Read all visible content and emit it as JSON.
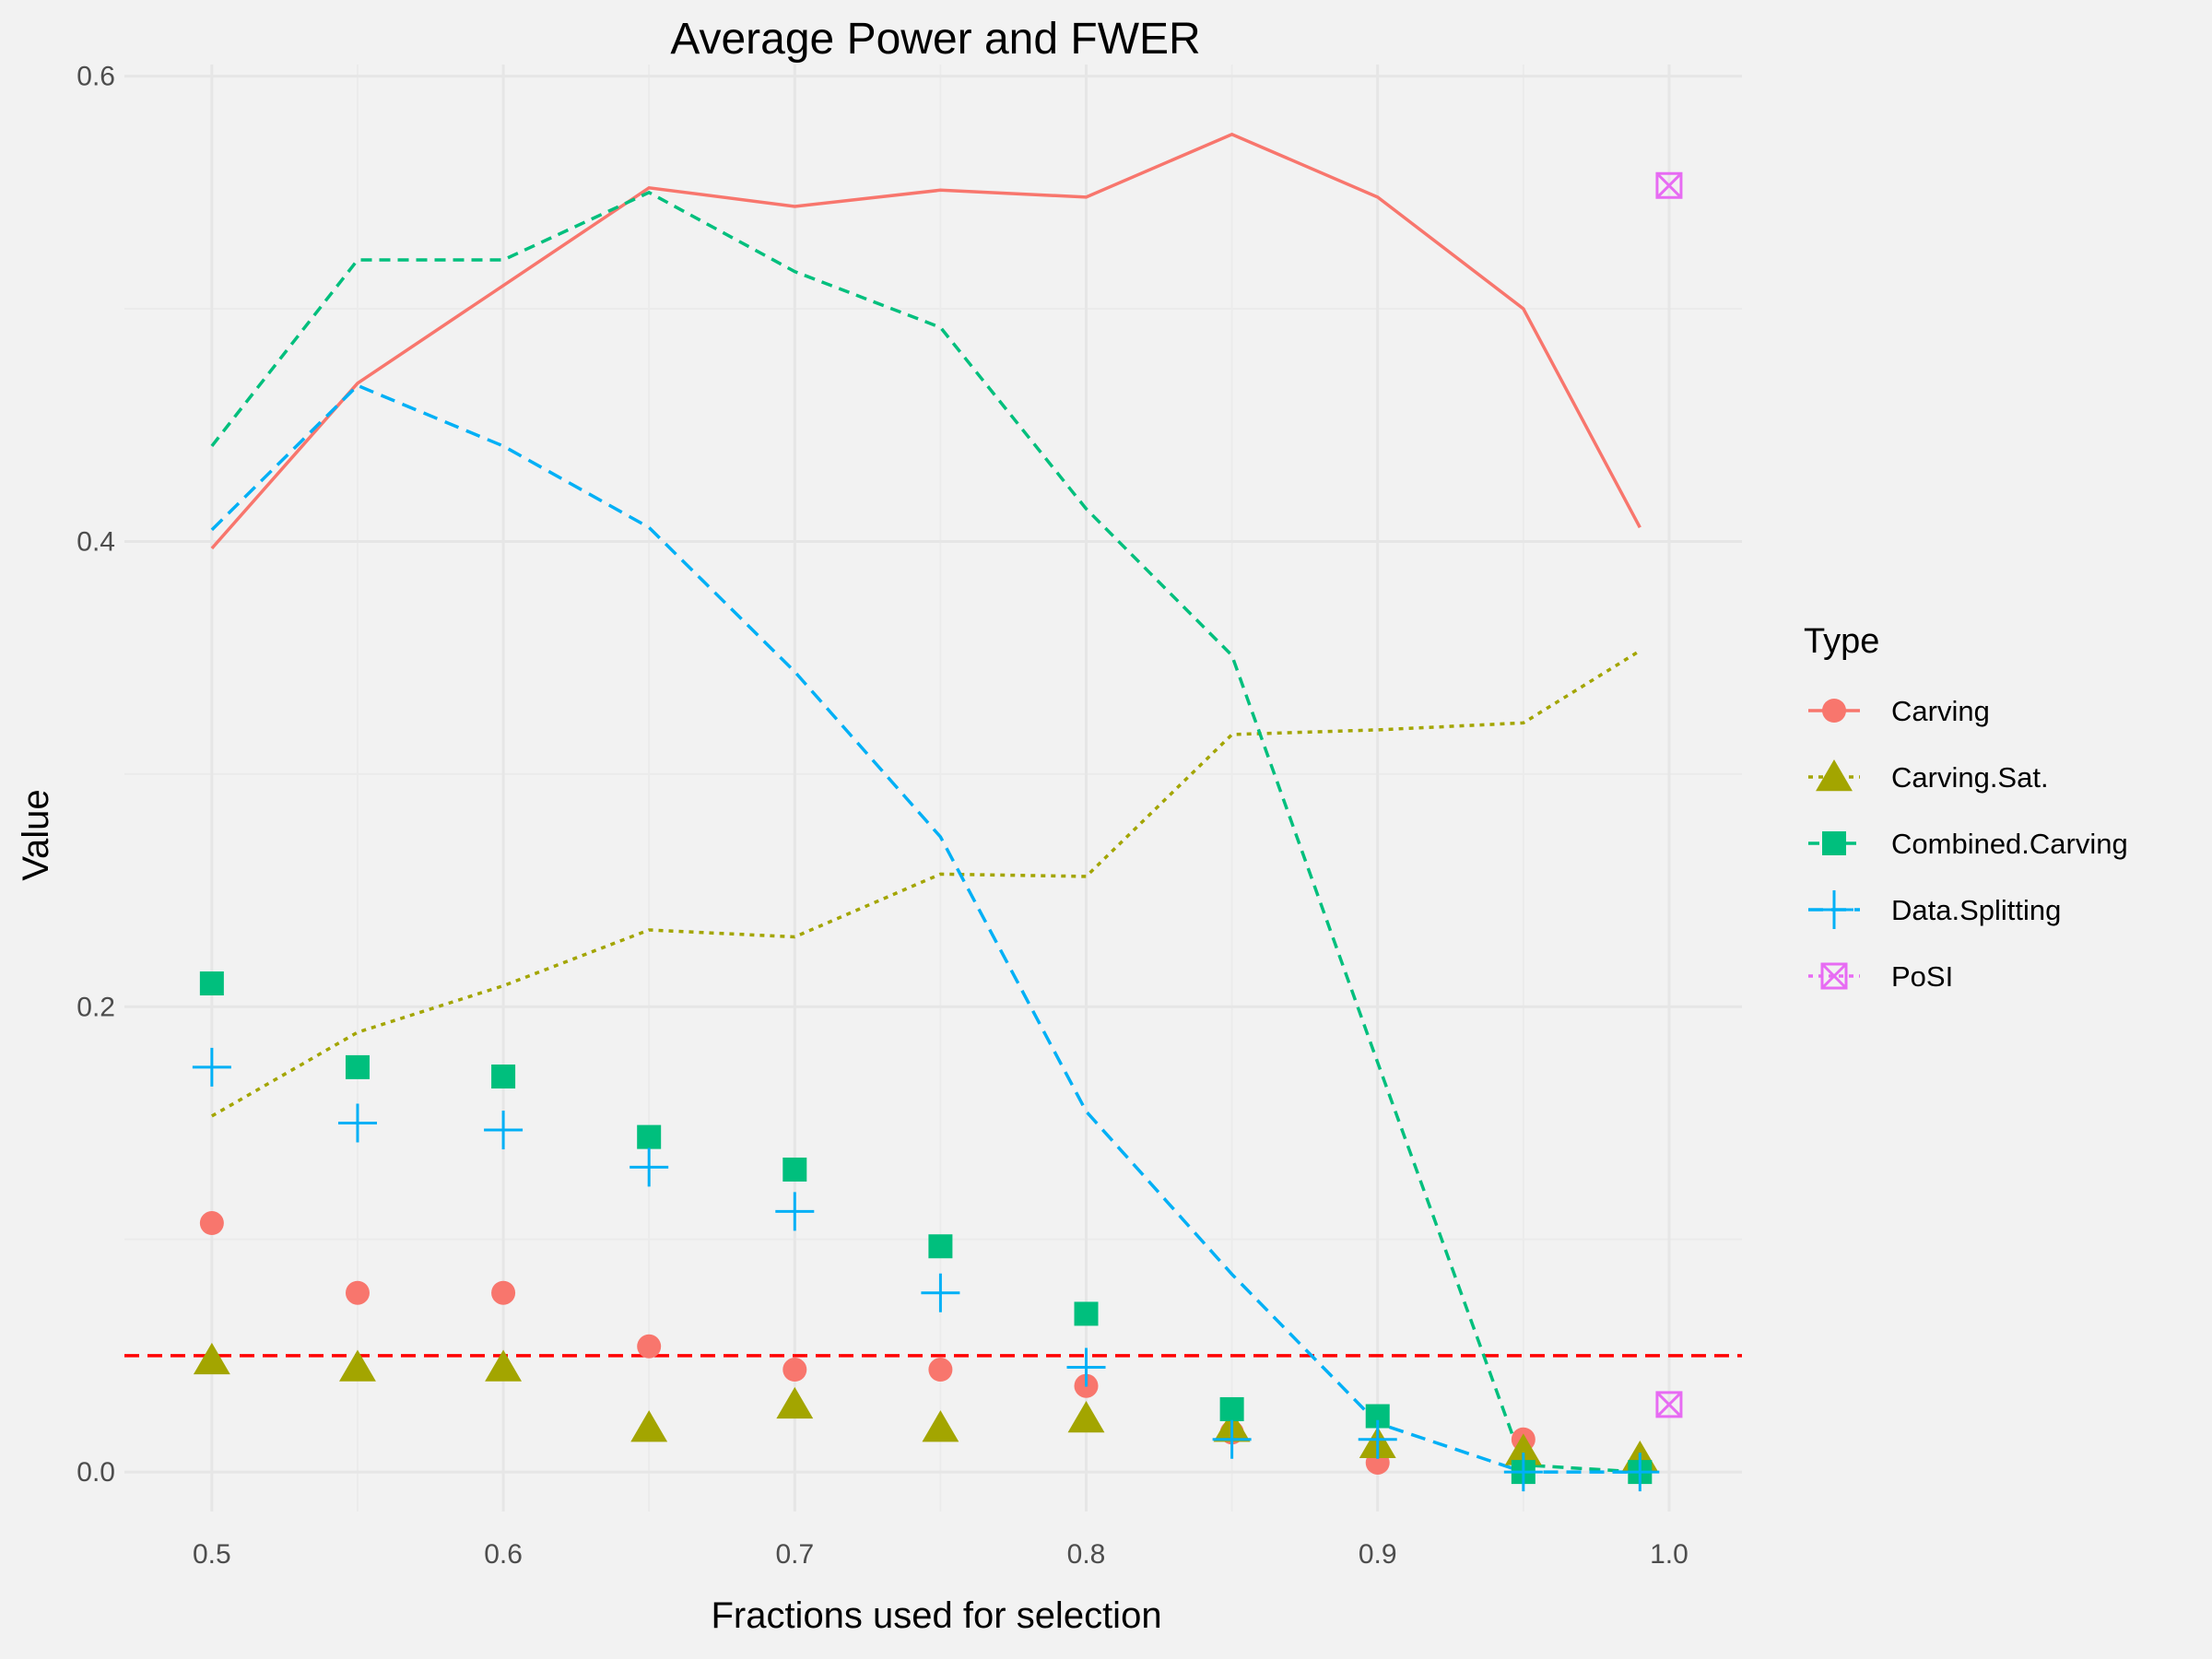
{
  "chart_data": {
    "type": "line",
    "title": "Average Power and FWER",
    "xlabel": "Fractions used for selection",
    "ylabel": "Value",
    "xlim": [
      0.47,
      1.025
    ],
    "ylim": [
      -0.017,
      0.605
    ],
    "x_ticks": [
      0.5,
      0.6,
      0.7,
      0.8,
      0.9,
      1.0
    ],
    "x_tick_labels": [
      "0.5",
      "0.6",
      "0.7",
      "0.8",
      "0.9",
      "1.0"
    ],
    "y_ticks": [
      0.0,
      0.2,
      0.4,
      0.6
    ],
    "y_tick_labels": [
      "0.0",
      "0.2",
      "0.4",
      "0.6"
    ],
    "y_minor_ticks": [
      0.1,
      0.3,
      0.5
    ],
    "x_minor_ticks": [
      0.55,
      0.65,
      0.75,
      0.85,
      0.95
    ],
    "grid": true,
    "legend_title": "Type",
    "legend_position": "right",
    "reference_line": {
      "y": 0.05,
      "color": "#ff0000",
      "style": "dashed"
    },
    "series": [
      {
        "name": "Carving",
        "color": "#F8766D",
        "shape": "circle",
        "linestyle": "solid",
        "line": {
          "x": [
            0.5,
            0.55,
            0.6,
            0.65,
            0.7,
            0.75,
            0.8,
            0.85,
            0.9,
            0.95,
            0.99
          ],
          "y": [
            0.397,
            0.468,
            0.51,
            0.552,
            0.544,
            0.551,
            0.548,
            0.575,
            0.548,
            0.5,
            0.406
          ]
        },
        "points": {
          "x": [
            0.5,
            0.55,
            0.6,
            0.65,
            0.7,
            0.75,
            0.8,
            0.85,
            0.9,
            0.95,
            0.99
          ],
          "y": [
            0.107,
            0.077,
            0.077,
            0.054,
            0.044,
            0.044,
            0.037,
            0.017,
            0.004,
            0.014,
            0.0
          ]
        }
      },
      {
        "name": "Carving.Sat.",
        "color": "#A3A500",
        "shape": "triangle",
        "linestyle": "dotted",
        "line": {
          "x": [
            0.5,
            0.55,
            0.6,
            0.65,
            0.7,
            0.75,
            0.8,
            0.85,
            0.9,
            0.95,
            0.99
          ],
          "y": [
            0.153,
            0.189,
            0.209,
            0.233,
            0.23,
            0.257,
            0.256,
            0.317,
            0.319,
            0.322,
            0.353
          ]
        },
        "points": {
          "x": [
            0.5,
            0.55,
            0.6,
            0.65,
            0.7,
            0.75,
            0.8,
            0.85,
            0.9,
            0.95,
            0.99
          ],
          "y": [
            0.048,
            0.045,
            0.045,
            0.019,
            0.029,
            0.019,
            0.023,
            0.019,
            0.012,
            0.009,
            0.006
          ]
        }
      },
      {
        "name": "Combined.Carving",
        "color": "#00BF7D",
        "shape": "square",
        "linestyle": "dashed",
        "line": {
          "x": [
            0.5,
            0.55,
            0.6,
            0.65,
            0.7,
            0.75,
            0.8,
            0.85,
            0.9,
            0.95,
            0.99
          ],
          "y": [
            0.441,
            0.521,
            0.521,
            0.55,
            0.516,
            0.492,
            0.414,
            0.351,
            0.176,
            0.003,
            0.0
          ]
        },
        "points": {
          "x": [
            0.5,
            0.55,
            0.6,
            0.65,
            0.7,
            0.75,
            0.8,
            0.85,
            0.9,
            0.95,
            0.99
          ],
          "y": [
            0.21,
            0.174,
            0.17,
            0.144,
            0.13,
            0.097,
            0.068,
            0.027,
            0.024,
            0.0,
            0.0
          ]
        }
      },
      {
        "name": "Data.Splitting",
        "color": "#00B0F6",
        "shape": "plus",
        "linestyle": "longdash",
        "line": {
          "x": [
            0.5,
            0.55,
            0.6,
            0.65,
            0.7,
            0.75,
            0.8,
            0.85,
            0.9,
            0.95,
            0.99
          ],
          "y": [
            0.405,
            0.467,
            0.441,
            0.406,
            0.344,
            0.273,
            0.155,
            0.085,
            0.021,
            0.0,
            0.0
          ]
        },
        "points": {
          "x": [
            0.5,
            0.55,
            0.6,
            0.65,
            0.7,
            0.75,
            0.8,
            0.85,
            0.9,
            0.95,
            0.99
          ],
          "y": [
            0.174,
            0.15,
            0.147,
            0.131,
            0.112,
            0.077,
            0.045,
            0.014,
            0.014,
            0.0,
            0.0
          ]
        }
      },
      {
        "name": "PoSI",
        "color": "#E76BF3",
        "shape": "square-cross",
        "linestyle": "dotted",
        "line": {
          "x": [],
          "y": []
        },
        "points": {
          "x": [
            1.0,
            1.0
          ],
          "y": [
            0.553,
            0.029
          ]
        }
      }
    ]
  }
}
